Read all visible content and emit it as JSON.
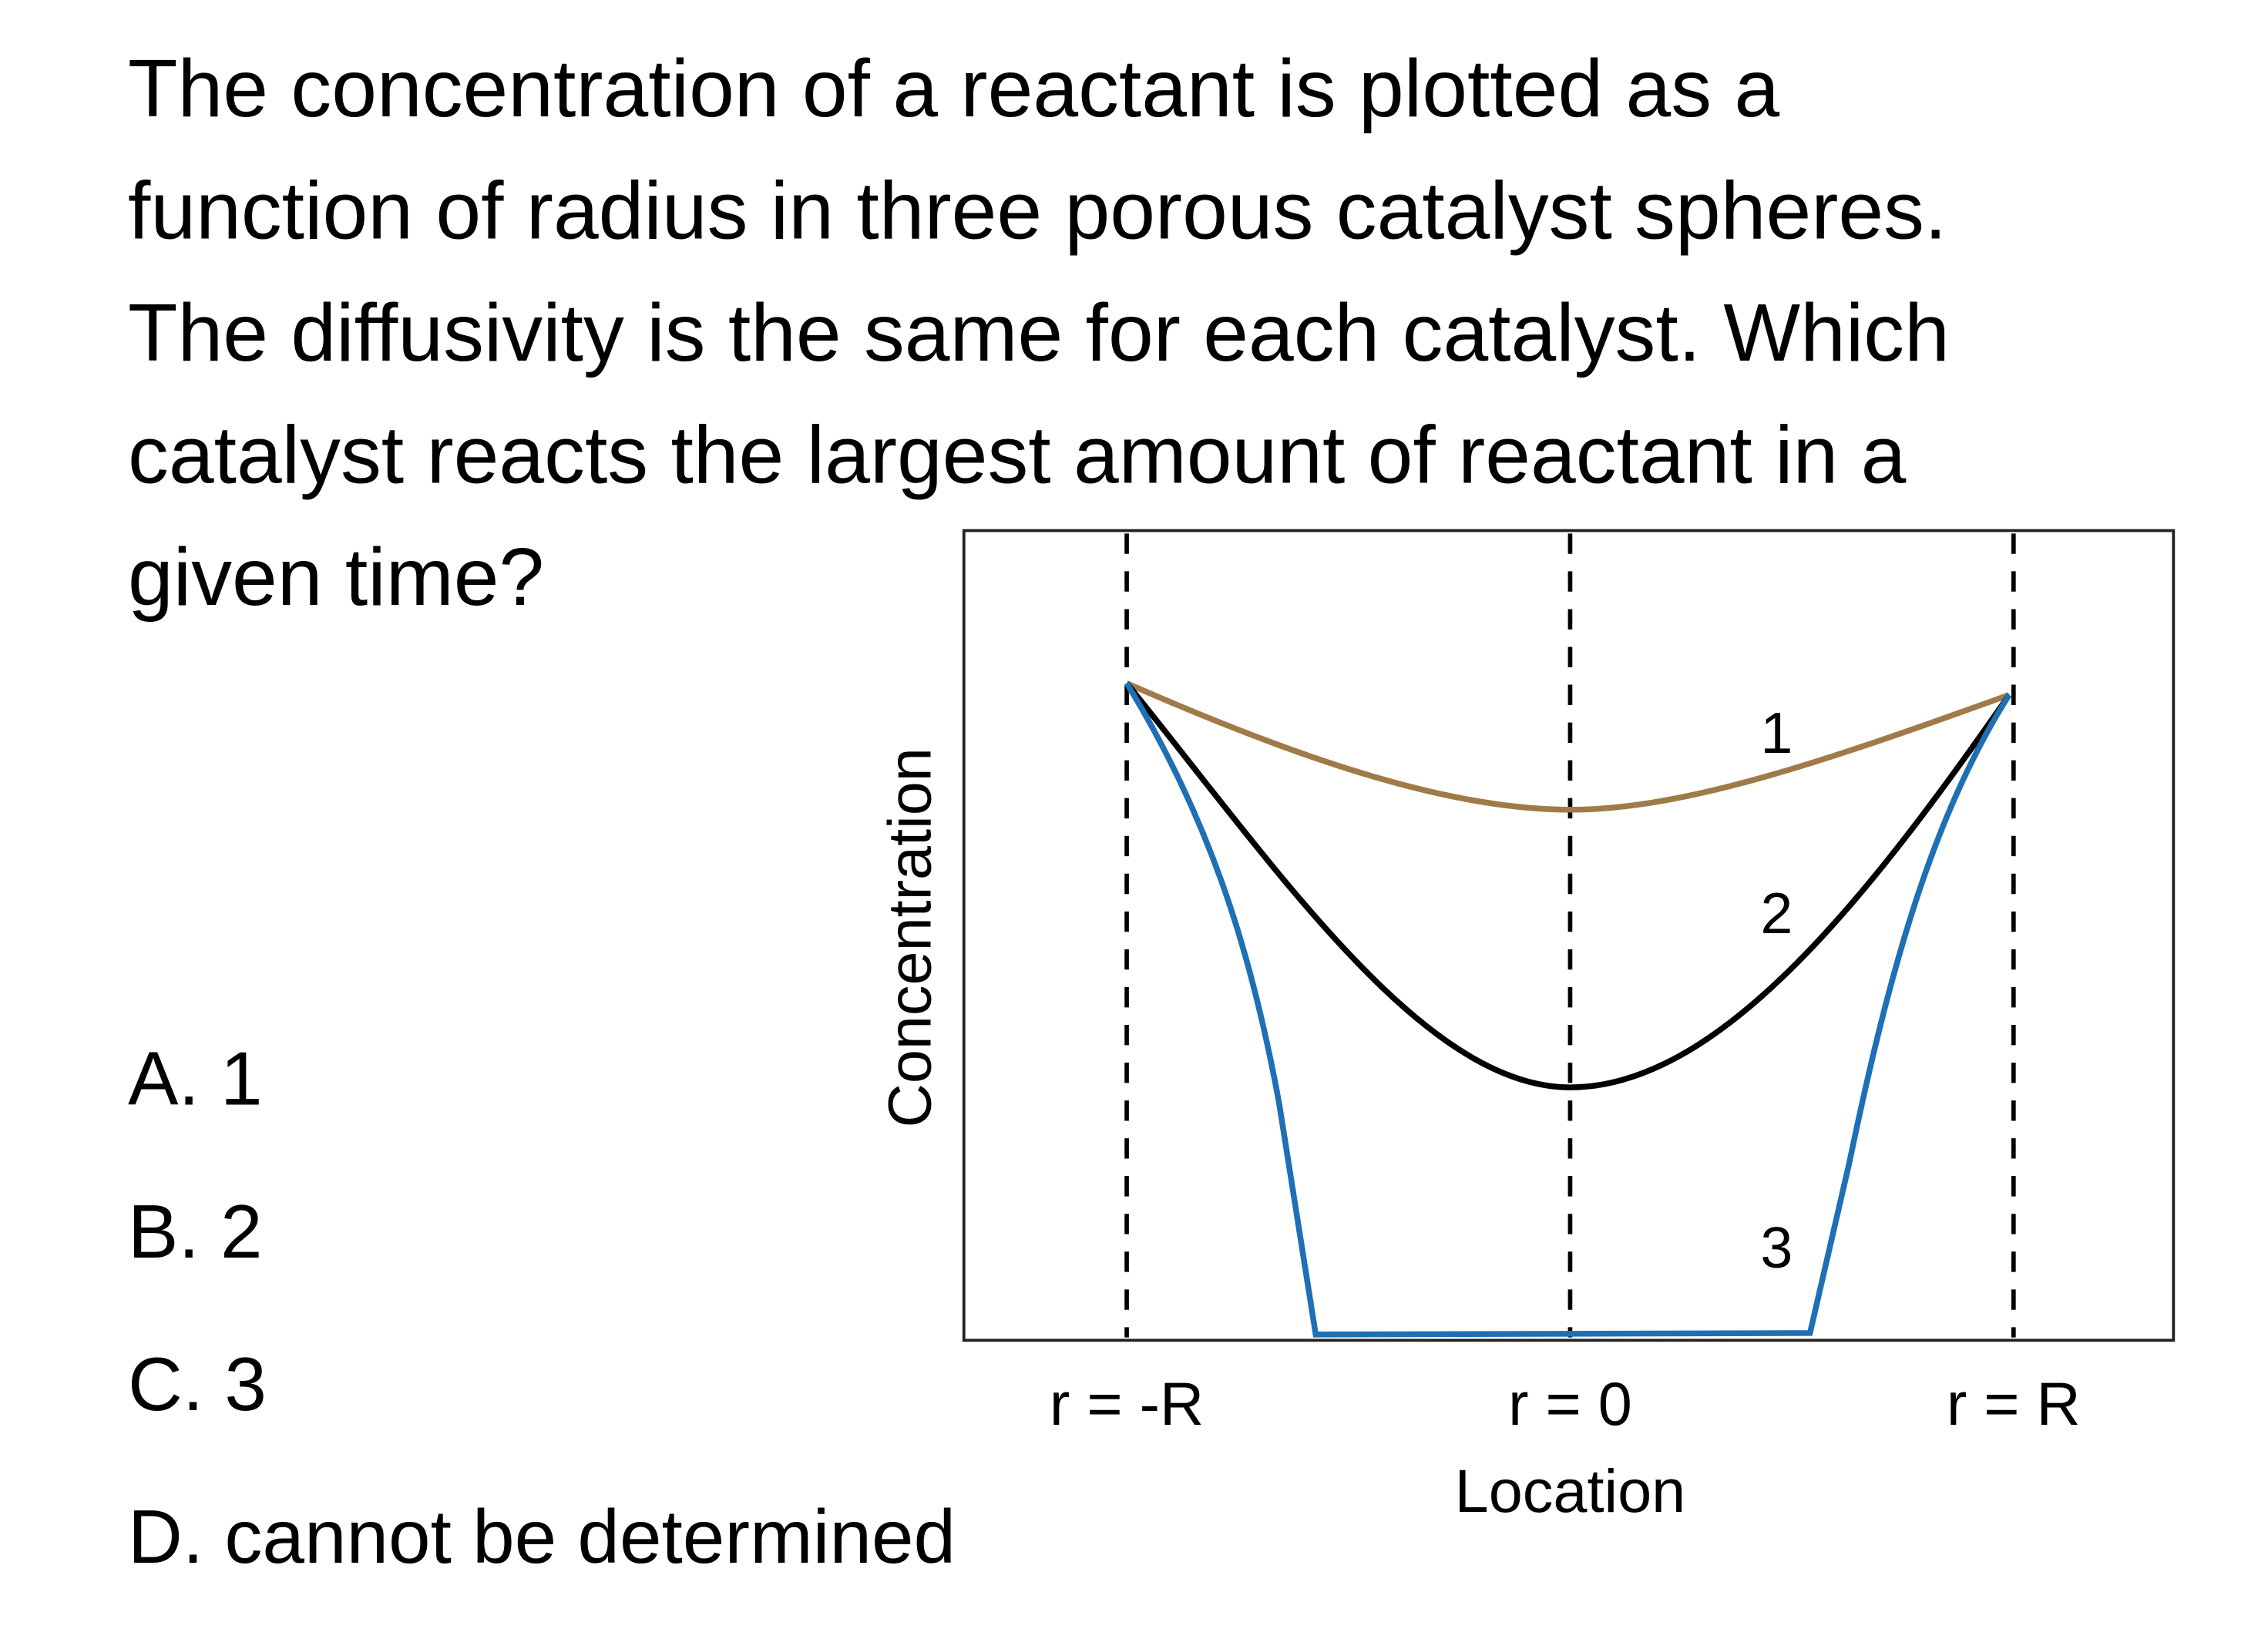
{
  "question": {
    "lines": [
      "The concentration of a reactant is plotted as a",
      "function of radius in three porous catalyst spheres.",
      "The diffusivity is the same for each catalyst. Which",
      "catalyst reacts the largest amount of reactant in a",
      "given time?"
    ]
  },
  "options": [
    "A. 1",
    "B. 2",
    "C. 3",
    "D. cannot be determined"
  ],
  "figure": {
    "y_label": "Concentration",
    "x_label": "Location",
    "x_ticks": [
      "r = -R",
      "r = 0",
      "r = R"
    ],
    "curve_labels": [
      "1",
      "2",
      "3"
    ]
  }
}
